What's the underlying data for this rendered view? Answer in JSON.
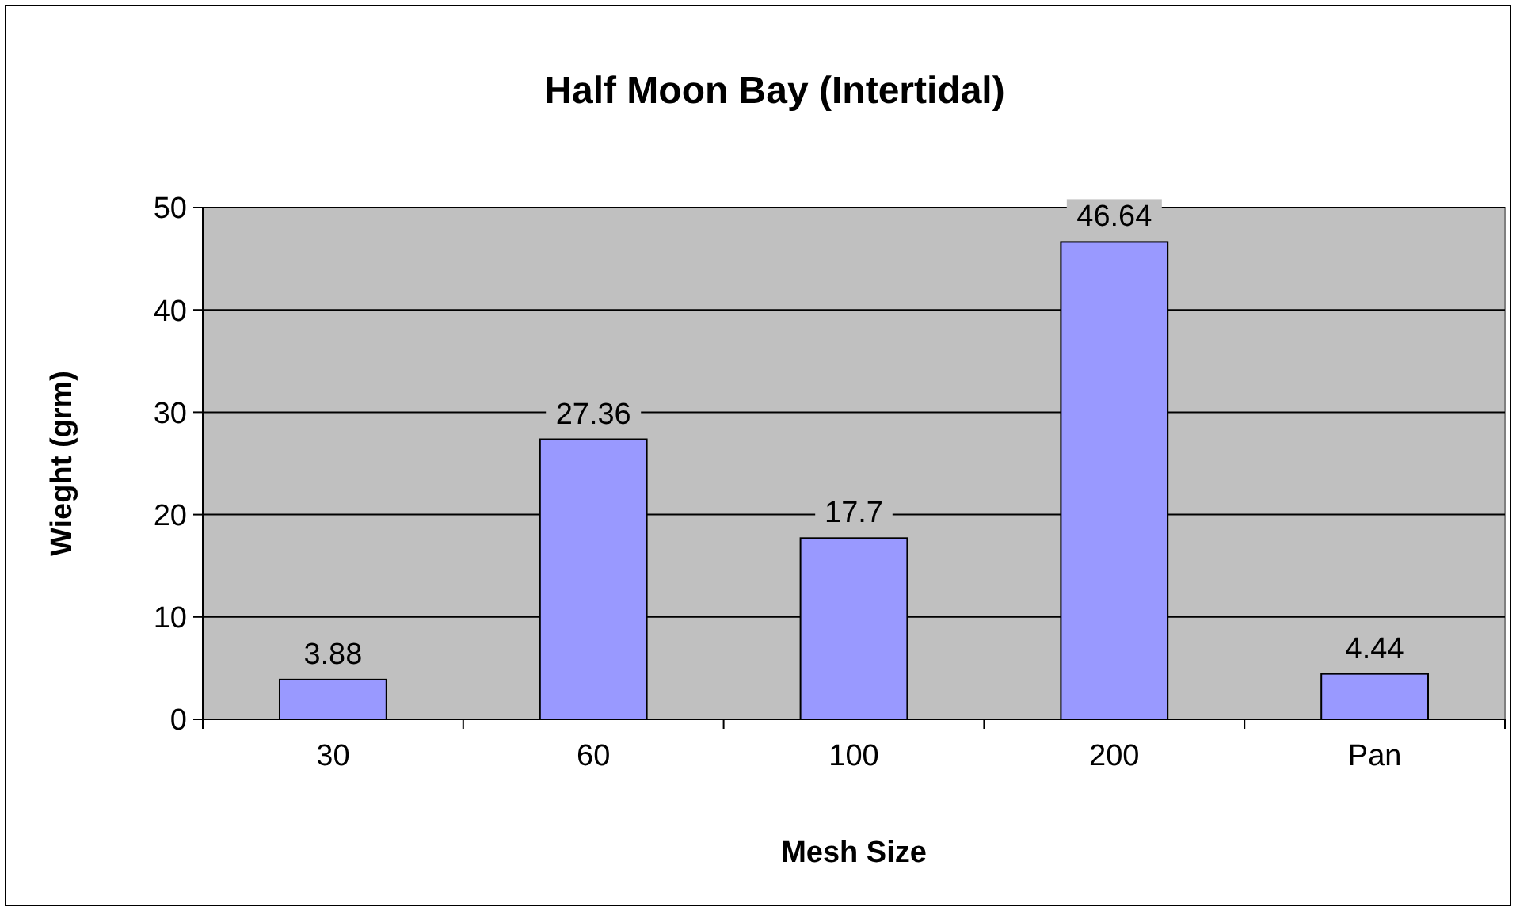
{
  "chart_data": {
    "type": "bar",
    "title": "Half Moon Bay (Intertidal)",
    "xlabel": "Mesh Size",
    "ylabel": "Wieght (grm)",
    "categories": [
      "30",
      "60",
      "100",
      "200",
      "Pan"
    ],
    "values": [
      3.88,
      27.36,
      17.7,
      46.64,
      4.44
    ],
    "color": "#9999ff",
    "ylim": [
      0,
      50
    ],
    "yticks": [
      0,
      10,
      20,
      30,
      40,
      50
    ],
    "grid": "y",
    "data_labels": true
  }
}
